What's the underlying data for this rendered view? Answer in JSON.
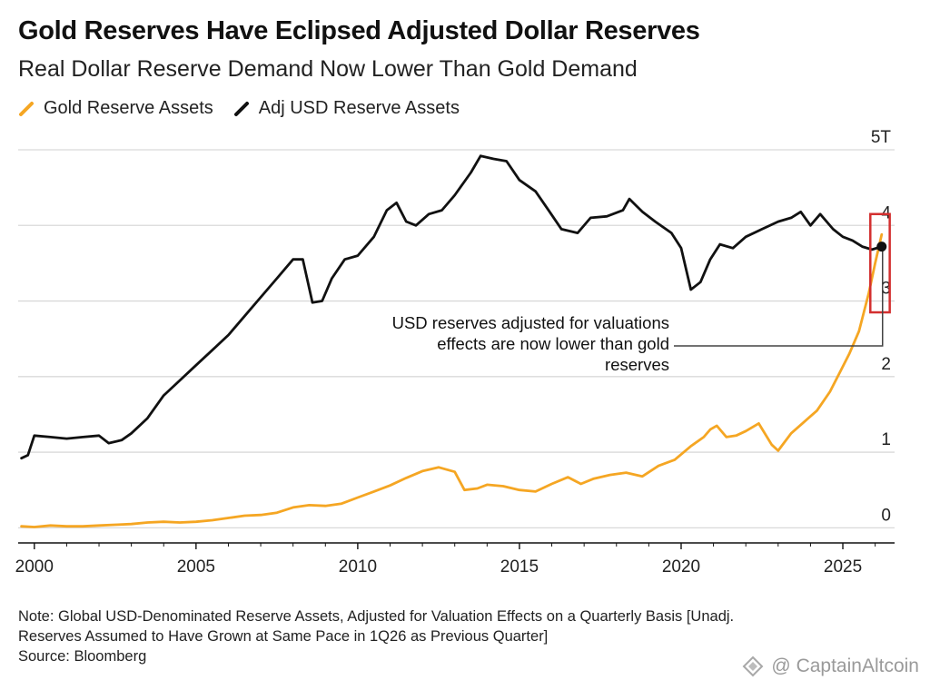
{
  "header": {
    "title": "Gold Reserves Have Eclipsed Adjusted Dollar Reserves",
    "subtitle": "Real Dollar Reserve Demand Now Lower Than Gold Demand"
  },
  "legend": [
    {
      "label": "Gold Reserve Assets",
      "color": "#f5a623"
    },
    {
      "label": "Adj USD Reserve Assets",
      "color": "#111111"
    }
  ],
  "notes": {
    "line1": "Note: Global USD-Denominated Reserve Assets, Adjusted for Valuation Effects on a Quarterly Basis [Unadj.",
    "line2": "Reserves Assumed to Have Grown at Same Pace in 1Q26 as Previous Quarter]",
    "source": "Source: Bloomberg"
  },
  "watermark": {
    "text": "@ CaptainAltcoin"
  },
  "chart_data": {
    "type": "line",
    "title": "Gold Reserves Have Eclipsed Adjusted Dollar Reserves",
    "subtitle": "Real Dollar Reserve Demand Now Lower Than Gold Demand",
    "xlabel": "",
    "ylabel": "",
    "xlim": [
      1999.5,
      2026.6
    ],
    "ylim": [
      -0.2,
      5
    ],
    "x_ticks": [
      2000,
      2005,
      2010,
      2015,
      2020,
      2025
    ],
    "x_tick_labels": [
      "2000",
      "2005",
      "2010",
      "2015",
      "2020",
      "2025"
    ],
    "y_ticks": [
      0,
      1,
      2,
      3,
      4,
      5
    ],
    "y_tick_labels": [
      "0",
      "1",
      "2",
      "3",
      "4",
      "5T"
    ],
    "grid": true,
    "legend_position": "top-left",
    "series": [
      {
        "name": "Gold Reserve Assets",
        "color": "#f5a623",
        "points": [
          [
            1999.6,
            0.02
          ],
          [
            2000.0,
            0.01
          ],
          [
            2000.5,
            0.03
          ],
          [
            2001.0,
            0.02
          ],
          [
            2001.5,
            0.02
          ],
          [
            2002.0,
            0.03
          ],
          [
            2002.5,
            0.04
          ],
          [
            2003.0,
            0.05
          ],
          [
            2003.5,
            0.07
          ],
          [
            2004.0,
            0.08
          ],
          [
            2004.5,
            0.07
          ],
          [
            2005.0,
            0.08
          ],
          [
            2005.5,
            0.1
          ],
          [
            2006.0,
            0.13
          ],
          [
            2006.5,
            0.16
          ],
          [
            2007.0,
            0.17
          ],
          [
            2007.5,
            0.2
          ],
          [
            2008.0,
            0.27
          ],
          [
            2008.5,
            0.3
          ],
          [
            2009.0,
            0.29
          ],
          [
            2009.5,
            0.32
          ],
          [
            2010.0,
            0.4
          ],
          [
            2010.5,
            0.48
          ],
          [
            2011.0,
            0.56
          ],
          [
            2011.5,
            0.66
          ],
          [
            2012.0,
            0.75
          ],
          [
            2012.5,
            0.8
          ],
          [
            2013.0,
            0.74
          ],
          [
            2013.3,
            0.5
          ],
          [
            2013.7,
            0.52
          ],
          [
            2014.0,
            0.57
          ],
          [
            2014.5,
            0.55
          ],
          [
            2015.0,
            0.5
          ],
          [
            2015.5,
            0.48
          ],
          [
            2016.0,
            0.58
          ],
          [
            2016.5,
            0.67
          ],
          [
            2016.9,
            0.58
          ],
          [
            2017.3,
            0.65
          ],
          [
            2017.8,
            0.7
          ],
          [
            2018.3,
            0.73
          ],
          [
            2018.8,
            0.68
          ],
          [
            2019.3,
            0.82
          ],
          [
            2019.8,
            0.9
          ],
          [
            2020.3,
            1.08
          ],
          [
            2020.7,
            1.2
          ],
          [
            2020.9,
            1.3
          ],
          [
            2021.1,
            1.35
          ],
          [
            2021.4,
            1.2
          ],
          [
            2021.7,
            1.22
          ],
          [
            2022.0,
            1.28
          ],
          [
            2022.4,
            1.38
          ],
          [
            2022.8,
            1.1
          ],
          [
            2023.0,
            1.02
          ],
          [
            2023.4,
            1.25
          ],
          [
            2023.8,
            1.4
          ],
          [
            2024.2,
            1.55
          ],
          [
            2024.6,
            1.8
          ],
          [
            2024.9,
            2.05
          ],
          [
            2025.2,
            2.3
          ],
          [
            2025.5,
            2.6
          ],
          [
            2025.8,
            3.1
          ],
          [
            2026.0,
            3.5
          ],
          [
            2026.2,
            3.88
          ]
        ]
      },
      {
        "name": "Adj USD Reserve Assets",
        "color": "#111111",
        "points": [
          [
            1999.6,
            0.92
          ],
          [
            1999.8,
            0.96
          ],
          [
            2000.0,
            1.22
          ],
          [
            2000.5,
            1.2
          ],
          [
            2001.0,
            1.18
          ],
          [
            2001.5,
            1.2
          ],
          [
            2002.0,
            1.22
          ],
          [
            2002.3,
            1.12
          ],
          [
            2002.7,
            1.16
          ],
          [
            2003.0,
            1.25
          ],
          [
            2003.5,
            1.45
          ],
          [
            2004.0,
            1.75
          ],
          [
            2004.5,
            1.95
          ],
          [
            2005.0,
            2.15
          ],
          [
            2005.5,
            2.35
          ],
          [
            2006.0,
            2.55
          ],
          [
            2006.5,
            2.8
          ],
          [
            2007.0,
            3.05
          ],
          [
            2007.5,
            3.3
          ],
          [
            2008.0,
            3.55
          ],
          [
            2008.3,
            3.55
          ],
          [
            2008.6,
            2.98
          ],
          [
            2008.9,
            3.0
          ],
          [
            2009.2,
            3.3
          ],
          [
            2009.6,
            3.55
          ],
          [
            2010.0,
            3.6
          ],
          [
            2010.5,
            3.85
          ],
          [
            2010.9,
            4.2
          ],
          [
            2011.2,
            4.3
          ],
          [
            2011.5,
            4.05
          ],
          [
            2011.8,
            4.0
          ],
          [
            2012.2,
            4.15
          ],
          [
            2012.6,
            4.2
          ],
          [
            2013.0,
            4.4
          ],
          [
            2013.5,
            4.7
          ],
          [
            2013.8,
            4.92
          ],
          [
            2014.2,
            4.88
          ],
          [
            2014.6,
            4.85
          ],
          [
            2015.0,
            4.6
          ],
          [
            2015.5,
            4.45
          ],
          [
            2015.9,
            4.2
          ],
          [
            2016.3,
            3.95
          ],
          [
            2016.8,
            3.9
          ],
          [
            2017.2,
            4.1
          ],
          [
            2017.7,
            4.12
          ],
          [
            2018.2,
            4.2
          ],
          [
            2018.4,
            4.35
          ],
          [
            2018.8,
            4.18
          ],
          [
            2019.2,
            4.05
          ],
          [
            2019.7,
            3.9
          ],
          [
            2020.0,
            3.7
          ],
          [
            2020.3,
            3.15
          ],
          [
            2020.6,
            3.25
          ],
          [
            2020.9,
            3.55
          ],
          [
            2021.2,
            3.75
          ],
          [
            2021.6,
            3.7
          ],
          [
            2022.0,
            3.85
          ],
          [
            2022.5,
            3.95
          ],
          [
            2023.0,
            4.05
          ],
          [
            2023.4,
            4.1
          ],
          [
            2023.7,
            4.18
          ],
          [
            2024.0,
            4.0
          ],
          [
            2024.3,
            4.15
          ],
          [
            2024.7,
            3.95
          ],
          [
            2025.0,
            3.85
          ],
          [
            2025.3,
            3.8
          ],
          [
            2025.6,
            3.72
          ],
          [
            2025.9,
            3.68
          ],
          [
            2026.2,
            3.72
          ]
        ]
      }
    ],
    "annotation": {
      "lines": [
        "USD reserves adjusted for valuations",
        "effects are now lower than gold",
        "reserves"
      ],
      "target": {
        "x": 2026.2,
        "y": 3.72
      },
      "highlight_box": {
        "x0": 2025.85,
        "x1": 2026.45,
        "y0": 2.85,
        "y1": 4.15,
        "color": "#d32f2f"
      }
    }
  }
}
